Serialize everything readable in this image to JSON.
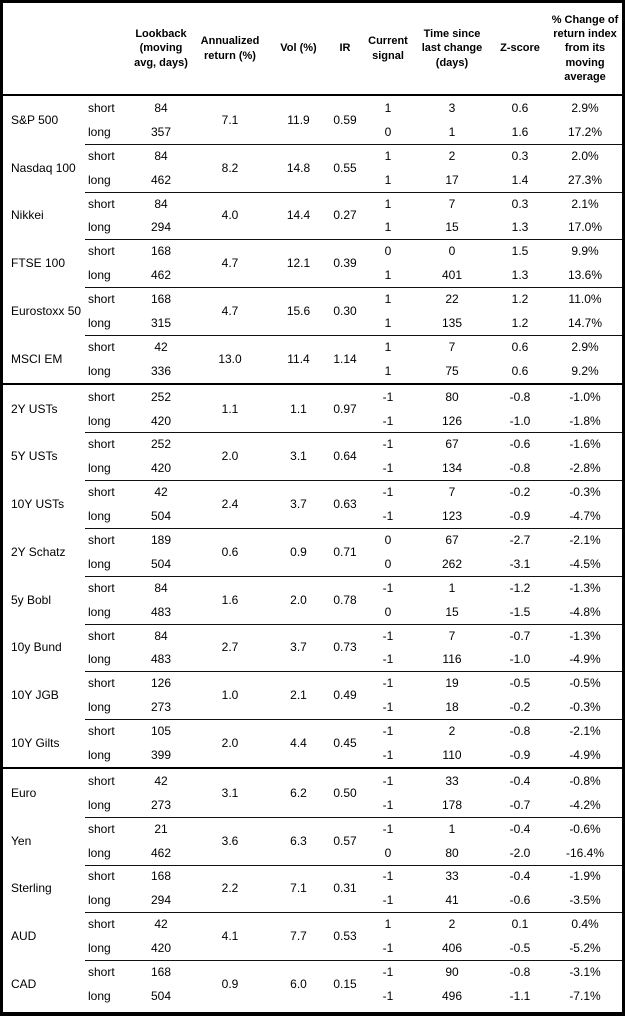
{
  "table": {
    "headers": {
      "instrument": "",
      "horizon": "",
      "lookback": "Lookback\n(moving\navg, days)",
      "annualized_return": "Annualized\nreturn (%)",
      "vol": "Vol (%)",
      "ir": "IR",
      "current_signal": "Current\nsignal",
      "time_since": "Time since\nlast change\n(days)",
      "zscore": "Z-score",
      "pct_change": "% Change of\nreturn index\nfrom its\nmoving\naverage"
    },
    "horizons": {
      "short": "short",
      "long": "long"
    },
    "sections": [
      {
        "id": "equities",
        "rows": [
          {
            "name": "S&P 500",
            "annualized_return": "7.1",
            "vol": "11.9",
            "ir": "0.59",
            "short": {
              "lookback": "84",
              "signal": "1",
              "time": "3",
              "zscore": "0.6",
              "pct": "2.9%"
            },
            "long": {
              "lookback": "357",
              "signal": "0",
              "time": "1",
              "zscore": "1.6",
              "pct": "17.2%"
            }
          },
          {
            "name": "Nasdaq 100",
            "annualized_return": "8.2",
            "vol": "14.8",
            "ir": "0.55",
            "short": {
              "lookback": "84",
              "signal": "1",
              "time": "2",
              "zscore": "0.3",
              "pct": "2.0%"
            },
            "long": {
              "lookback": "462",
              "signal": "1",
              "time": "17",
              "zscore": "1.4",
              "pct": "27.3%"
            }
          },
          {
            "name": "Nikkei",
            "annualized_return": "4.0",
            "vol": "14.4",
            "ir": "0.27",
            "short": {
              "lookback": "84",
              "signal": "1",
              "time": "7",
              "zscore": "0.3",
              "pct": "2.1%"
            },
            "long": {
              "lookback": "294",
              "signal": "1",
              "time": "15",
              "zscore": "1.3",
              "pct": "17.0%"
            }
          },
          {
            "name": "FTSE 100",
            "annualized_return": "4.7",
            "vol": "12.1",
            "ir": "0.39",
            "short": {
              "lookback": "168",
              "signal": "0",
              "time": "0",
              "zscore": "1.5",
              "pct": "9.9%"
            },
            "long": {
              "lookback": "462",
              "signal": "1",
              "time": "401",
              "zscore": "1.3",
              "pct": "13.6%"
            }
          },
          {
            "name": "Eurostoxx 50",
            "annualized_return": "4.7",
            "vol": "15.6",
            "ir": "0.30",
            "short": {
              "lookback": "168",
              "signal": "1",
              "time": "22",
              "zscore": "1.2",
              "pct": "11.0%"
            },
            "long": {
              "lookback": "315",
              "signal": "1",
              "time": "135",
              "zscore": "1.2",
              "pct": "14.7%"
            }
          },
          {
            "name": "MSCI EM",
            "annualized_return": "13.0",
            "vol": "11.4",
            "ir": "1.14",
            "short": {
              "lookback": "42",
              "signal": "1",
              "time": "7",
              "zscore": "0.6",
              "pct": "2.9%"
            },
            "long": {
              "lookback": "336",
              "signal": "1",
              "time": "75",
              "zscore": "0.6",
              "pct": "9.2%"
            }
          }
        ]
      },
      {
        "id": "rates",
        "rows": [
          {
            "name": "2Y USTs",
            "annualized_return": "1.1",
            "vol": "1.1",
            "ir": "0.97",
            "short": {
              "lookback": "252",
              "signal": "-1",
              "time": "80",
              "zscore": "-0.8",
              "pct": "-1.0%"
            },
            "long": {
              "lookback": "420",
              "signal": "-1",
              "time": "126",
              "zscore": "-1.0",
              "pct": "-1.8%"
            }
          },
          {
            "name": "5Y USTs",
            "annualized_return": "2.0",
            "vol": "3.1",
            "ir": "0.64",
            "short": {
              "lookback": "252",
              "signal": "-1",
              "time": "67",
              "zscore": "-0.6",
              "pct": "-1.6%"
            },
            "long": {
              "lookback": "420",
              "signal": "-1",
              "time": "134",
              "zscore": "-0.8",
              "pct": "-2.8%"
            }
          },
          {
            "name": "10Y USTs",
            "annualized_return": "2.4",
            "vol": "3.7",
            "ir": "0.63",
            "short": {
              "lookback": "42",
              "signal": "-1",
              "time": "7",
              "zscore": "-0.2",
              "pct": "-0.3%"
            },
            "long": {
              "lookback": "504",
              "signal": "-1",
              "time": "123",
              "zscore": "-0.9",
              "pct": "-4.7%"
            }
          },
          {
            "name": "2Y Schatz",
            "annualized_return": "0.6",
            "vol": "0.9",
            "ir": "0.71",
            "short": {
              "lookback": "189",
              "signal": "0",
              "time": "67",
              "zscore": "-2.7",
              "pct": "-2.1%"
            },
            "long": {
              "lookback": "504",
              "signal": "0",
              "time": "262",
              "zscore": "-3.1",
              "pct": "-4.5%"
            }
          },
          {
            "name": "5y Bobl",
            "annualized_return": "1.6",
            "vol": "2.0",
            "ir": "0.78",
            "short": {
              "lookback": "84",
              "signal": "-1",
              "time": "1",
              "zscore": "-1.2",
              "pct": "-1.3%"
            },
            "long": {
              "lookback": "483",
              "signal": "0",
              "time": "15",
              "zscore": "-1.5",
              "pct": "-4.8%"
            }
          },
          {
            "name": "10y Bund",
            "annualized_return": "2.7",
            "vol": "3.7",
            "ir": "0.73",
            "short": {
              "lookback": "84",
              "signal": "-1",
              "time": "7",
              "zscore": "-0.7",
              "pct": "-1.3%"
            },
            "long": {
              "lookback": "483",
              "signal": "-1",
              "time": "116",
              "zscore": "-1.0",
              "pct": "-4.9%"
            }
          },
          {
            "name": "10Y JGB",
            "annualized_return": "1.0",
            "vol": "2.1",
            "ir": "0.49",
            "short": {
              "lookback": "126",
              "signal": "-1",
              "time": "19",
              "zscore": "-0.5",
              "pct": "-0.5%"
            },
            "long": {
              "lookback": "273",
              "signal": "-1",
              "time": "18",
              "zscore": "-0.2",
              "pct": "-0.3%"
            }
          },
          {
            "name": "10Y Gilts",
            "annualized_return": "2.0",
            "vol": "4.4",
            "ir": "0.45",
            "short": {
              "lookback": "105",
              "signal": "-1",
              "time": "2",
              "zscore": "-0.8",
              "pct": "-2.1%"
            },
            "long": {
              "lookback": "399",
              "signal": "-1",
              "time": "110",
              "zscore": "-0.9",
              "pct": "-4.9%"
            }
          }
        ]
      },
      {
        "id": "fx",
        "rows": [
          {
            "name": "Euro",
            "annualized_return": "3.1",
            "vol": "6.2",
            "ir": "0.50",
            "short": {
              "lookback": "42",
              "signal": "-1",
              "time": "33",
              "zscore": "-0.4",
              "pct": "-0.8%"
            },
            "long": {
              "lookback": "273",
              "signal": "-1",
              "time": "178",
              "zscore": "-0.7",
              "pct": "-4.2%"
            }
          },
          {
            "name": "Yen",
            "annualized_return": "3.6",
            "vol": "6.3",
            "ir": "0.57",
            "short": {
              "lookback": "21",
              "signal": "-1",
              "time": "1",
              "zscore": "-0.4",
              "pct": "-0.6%"
            },
            "long": {
              "lookback": "462",
              "signal": "0",
              "time": "80",
              "zscore": "-2.0",
              "pct": "-16.4%"
            }
          },
          {
            "name": "Sterling",
            "annualized_return": "2.2",
            "vol": "7.1",
            "ir": "0.31",
            "short": {
              "lookback": "168",
              "signal": "-1",
              "time": "33",
              "zscore": "-0.4",
              "pct": "-1.9%"
            },
            "long": {
              "lookback": "294",
              "signal": "-1",
              "time": "41",
              "zscore": "-0.6",
              "pct": "-3.5%"
            }
          },
          {
            "name": "AUD",
            "annualized_return": "4.1",
            "vol": "7.7",
            "ir": "0.53",
            "short": {
              "lookback": "42",
              "signal": "1",
              "time": "2",
              "zscore": "0.1",
              "pct": "0.4%"
            },
            "long": {
              "lookback": "420",
              "signal": "-1",
              "time": "406",
              "zscore": "-0.5",
              "pct": "-5.2%"
            }
          },
          {
            "name": "CAD",
            "annualized_return": "0.9",
            "vol": "6.0",
            "ir": "0.15",
            "short": {
              "lookback": "168",
              "signal": "-1",
              "time": "90",
              "zscore": "-0.8",
              "pct": "-3.1%"
            },
            "long": {
              "lookback": "504",
              "signal": "-1",
              "time": "496",
              "zscore": "-1.1",
              "pct": "-7.1%"
            }
          }
        ]
      }
    ]
  }
}
